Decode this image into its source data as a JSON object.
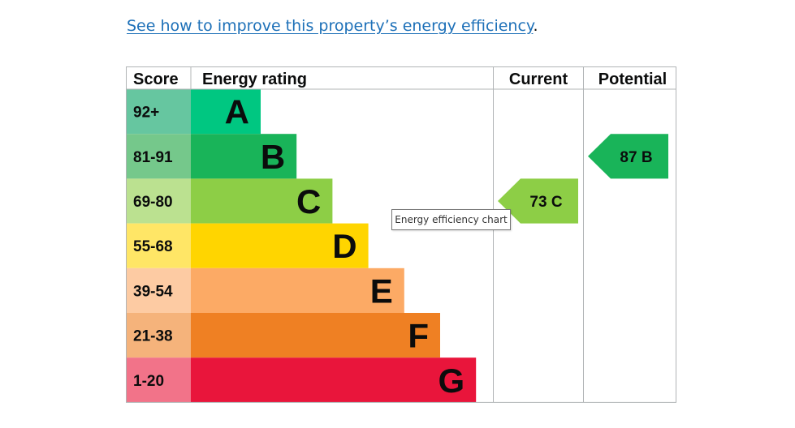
{
  "intro": {
    "link_text": "See how to improve this property’s energy efficiency",
    "after_text": "."
  },
  "tooltip": "Energy efficiency chart",
  "chart_data": {
    "type": "bar",
    "headers": {
      "score": "Score",
      "rating": "Energy rating",
      "current": "Current",
      "potential": "Potential"
    },
    "bands": [
      {
        "letter": "A",
        "range": "92+",
        "color": "#008054",
        "bar_color": "#00c781",
        "score_color": "#66c6a0"
      },
      {
        "letter": "B",
        "range": "81-91",
        "color": "#19b459",
        "bar_color": "#19b459",
        "score_color": "#75c88b"
      },
      {
        "letter": "C",
        "range": "69-80",
        "color": "#8dce46",
        "bar_color": "#8dce46",
        "score_color": "#bbe190"
      },
      {
        "letter": "D",
        "range": "55-68",
        "color": "#ffd500",
        "bar_color": "#ffd500",
        "score_color": "#ffe666"
      },
      {
        "letter": "E",
        "range": "39-54",
        "color": "#fcaa65",
        "bar_color": "#fcaa65",
        "score_color": "#fdcba3"
      },
      {
        "letter": "F",
        "range": "21-38",
        "color": "#ef8023",
        "bar_color": "#ef8023",
        "score_color": "#f5b37b"
      },
      {
        "letter": "G",
        "range": "1-20",
        "color": "#e9153b",
        "bar_color": "#e9153b",
        "score_color": "#f27389"
      }
    ],
    "current": {
      "value": 73,
      "band": "C",
      "label": "73  C",
      "color": "#8dce46"
    },
    "potential": {
      "value": 87,
      "band": "B",
      "label": "87  B",
      "color": "#19b459"
    }
  }
}
